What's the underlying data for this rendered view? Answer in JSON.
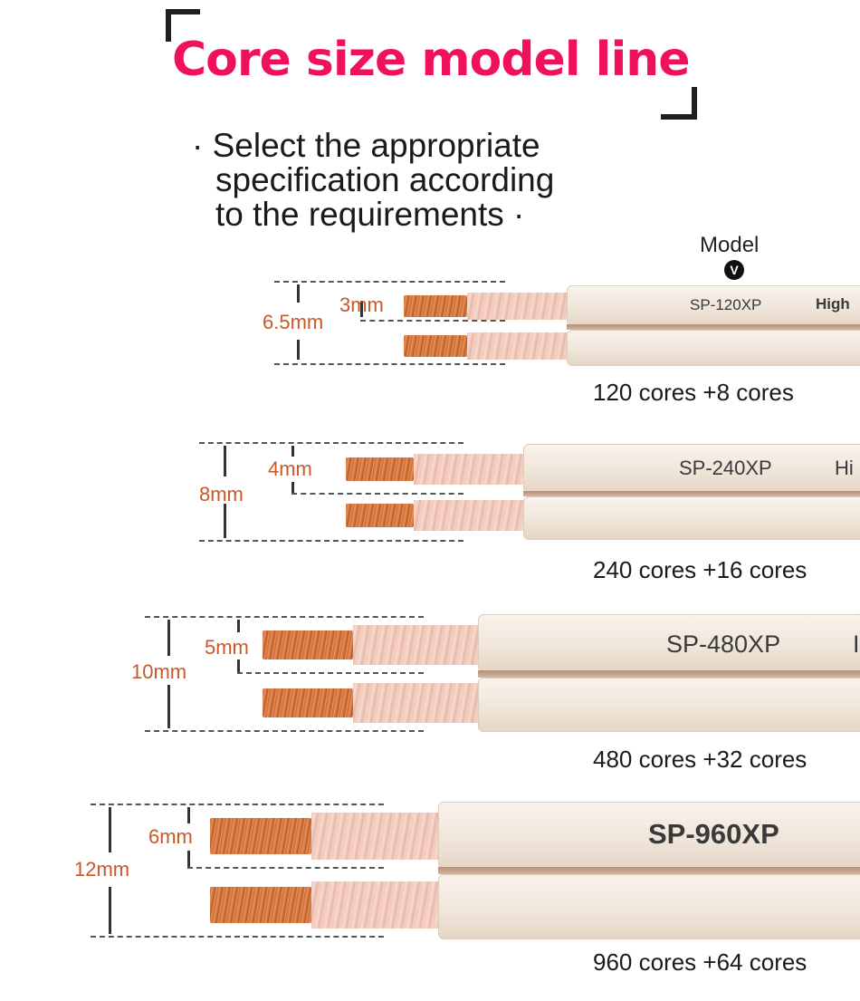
{
  "header": {
    "title": "Core size model line",
    "subtitle_lines": [
      "· Select the appropriate",
      "specification according",
      "to the requirements ·"
    ],
    "model_label": "Model",
    "model_badge": "V"
  },
  "cables": [
    {
      "model": "SP-120XP",
      "suffix": "High",
      "cores": "120 cores +8 cores",
      "core_size": "3mm",
      "overall": "6.5mm"
    },
    {
      "model": "SP-240XP",
      "suffix": "Hi",
      "cores": "240 cores +16 cores",
      "core_size": "4mm",
      "overall": "8mm"
    },
    {
      "model": "SP-480XP",
      "suffix": "I",
      "cores": "480 cores +32 cores",
      "core_size": "5mm",
      "overall": "10mm"
    },
    {
      "model": "SP-960XP",
      "suffix": "",
      "cores": "960 cores +64 cores",
      "core_size": "6mm",
      "overall": "12mm"
    }
  ],
  "colors": {
    "title": "#f0115d",
    "dimension": "#c8582a",
    "copper": "#d4733a",
    "jacket": "#f3ebe2"
  }
}
